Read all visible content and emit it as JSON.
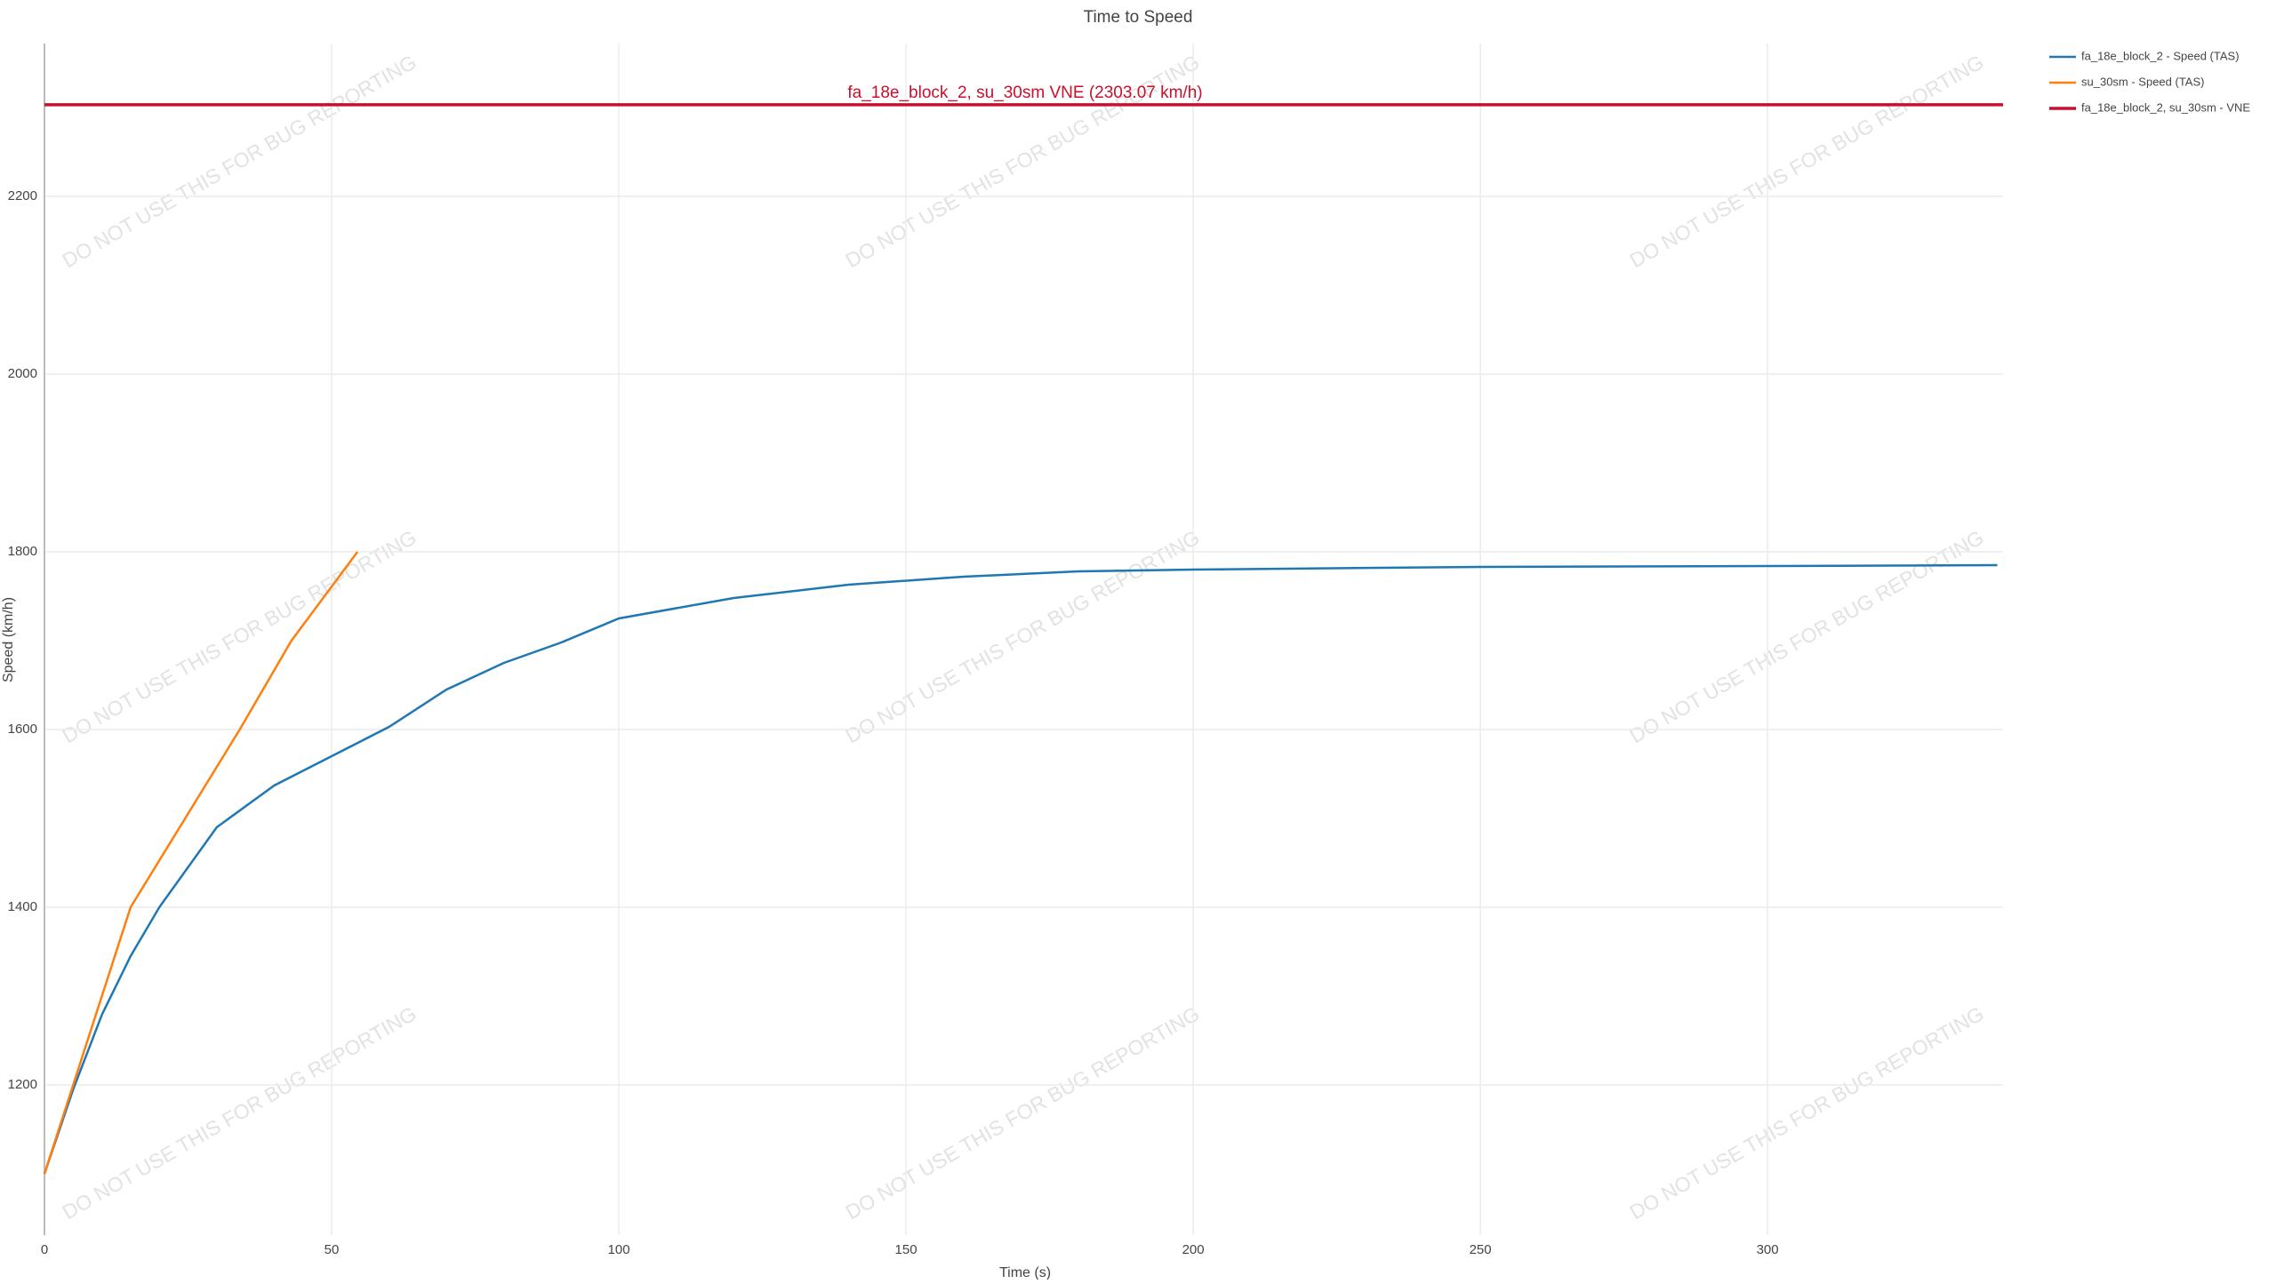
{
  "chart_data": {
    "type": "line",
    "title": "Time to Speed",
    "x_label": "Time (s)",
    "y_label": "Speed (km/h)",
    "watermark": "DO NOT USE THIS FOR BUG REPORTING",
    "xlim": [
      0,
      341
    ],
    "ylim": [
      1031,
      2372
    ],
    "xticks": [
      0,
      50,
      100,
      150,
      200,
      250,
      300
    ],
    "yticks": [
      1200,
      1400,
      1600,
      1800,
      2000,
      2200
    ],
    "grid": true,
    "legend": "outside-top-right",
    "series": [
      {
        "name": "fa_18e_block_2 - Speed (TAS)",
        "color": "#1f77b4",
        "x": [
          0,
          5,
          10,
          15,
          20,
          30,
          40,
          50,
          60,
          70,
          80,
          90,
          100,
          120,
          140,
          160,
          180,
          200,
          250,
          300,
          340
        ],
        "values": [
          1100,
          1195,
          1279,
          1345,
          1400,
          1490,
          1537,
          1570,
          1603,
          1645,
          1675,
          1698,
          1725,
          1748,
          1763,
          1772,
          1778,
          1780,
          1783,
          1784,
          1785
        ]
      },
      {
        "name": "su_30sm - Speed (TAS)",
        "color": "#ff7f0e",
        "x": [
          0,
          15,
          34,
          43,
          54.5
        ],
        "values": [
          1100,
          1400,
          1600,
          1700,
          1800
        ]
      }
    ],
    "reference_line": {
      "name": "fa_18e_block_2, su_30sm - VNE",
      "color": "#c8102e",
      "value": 2303.07,
      "annotation": "fa_18e_block_2, su_30sm VNE (2303.07 km/h)"
    }
  }
}
